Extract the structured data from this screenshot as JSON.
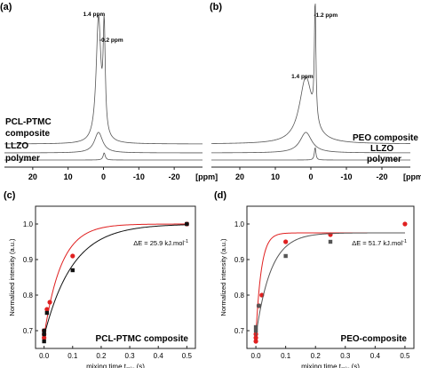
{
  "chart_data": [
    {
      "panel": "(a)",
      "type": "line",
      "xlabel": "[ppm]",
      "x_ticks": [
        20,
        10,
        0,
        -10,
        -20
      ],
      "xlim": [
        28,
        -28
      ],
      "x_reversed": true,
      "peak_labels": [
        {
          "text": "1.4 ppm",
          "ppm": 1.4
        },
        {
          "text": "-0.2 ppm",
          "ppm": -0.2
        }
      ],
      "series": [
        {
          "name": "PCL-PTMC composite",
          "peaks": [
            {
              "ppm": 1.4,
              "height": 1.0,
              "width": 0.8
            },
            {
              "ppm": -0.2,
              "height": 0.85,
              "width": 0.35
            }
          ]
        },
        {
          "name": "LLZO",
          "peaks": [
            {
              "ppm": 1.4,
              "height": 0.42,
              "width": 1.4
            }
          ]
        },
        {
          "name": "polymer",
          "peaks": [
            {
              "ppm": -0.2,
              "height": 0.18,
              "width": 0.35
            }
          ]
        }
      ],
      "trace_labels": [
        "PCL-PTMC",
        "composite",
        "LLZO",
        "polymer"
      ]
    },
    {
      "panel": "(b)",
      "type": "line",
      "xlabel": "[ppm]",
      "x_ticks": [
        20,
        10,
        0,
        -10,
        -20
      ],
      "xlim": [
        28,
        -28
      ],
      "x_reversed": true,
      "peak_labels": [
        {
          "text": "1.4 ppm",
          "ppm": 1.4
        },
        {
          "text": "-1.2 ppm",
          "ppm": -1.2
        }
      ],
      "series": [
        {
          "name": "PEO composite",
          "peaks": [
            {
              "ppm": 1.4,
              "height": 0.55,
              "width": 2.2
            },
            {
              "ppm": -1.2,
              "height": 1.0,
              "width": 0.25
            }
          ]
        },
        {
          "name": "LLZO",
          "peaks": [
            {
              "ppm": 1.4,
              "height": 0.42,
              "width": 2.0
            }
          ]
        },
        {
          "name": "polymer",
          "peaks": [
            {
              "ppm": -1.2,
              "height": 0.32,
              "width": 0.25
            }
          ]
        }
      ],
      "trace_labels": [
        "PEO composite",
        "LLZO",
        "polymer"
      ]
    },
    {
      "panel": "(c)",
      "type": "scatter",
      "title": "PCL-PTMC composite",
      "xlabel": "mixing time t",
      "xlabel_sub": "mix",
      "xlabel_unit": " (s)",
      "ylabel": "Normalized intensity (a.u.)",
      "xlim": [
        -0.03,
        0.53
      ],
      "ylim": [
        0.65,
        1.05
      ],
      "x_ticks": [
        0.0,
        0.1,
        0.2,
        0.3,
        0.4,
        0.5
      ],
      "y_ticks": [
        0.7,
        0.8,
        0.9,
        1.0
      ],
      "annotation": "ΔE = 25.9 kJ.mol",
      "annotation_sup": "-1",
      "series": [
        {
          "color": "#e02020",
          "marker": "circle",
          "x": [
            0.0,
            0.0,
            0.0,
            0.01,
            0.02,
            0.1,
            0.5
          ],
          "y": [
            0.7,
            0.69,
            0.68,
            0.76,
            0.78,
            0.91,
            1.0
          ],
          "fit_tau": 0.06
        },
        {
          "color": "#111111",
          "marker": "square",
          "x": [
            0.0,
            0.0,
            0.0,
            0.01,
            0.1,
            0.5
          ],
          "y": [
            0.67,
            0.7,
            0.69,
            0.75,
            0.87,
            1.0
          ],
          "fit_tau": 0.1
        }
      ]
    },
    {
      "panel": "(d)",
      "type": "scatter",
      "title": "PEO-composite",
      "xlabel": "mixing time t",
      "xlabel_sub": "mix",
      "xlabel_unit": " (s)",
      "ylabel": "Normalized intensity (a.u.)",
      "xlim": [
        -0.03,
        0.53
      ],
      "ylim": [
        0.65,
        1.05
      ],
      "x_ticks": [
        0.0,
        0.1,
        0.2,
        0.3,
        0.4,
        0.5
      ],
      "y_ticks": [
        0.7,
        0.8,
        0.9,
        1.0
      ],
      "annotation": "ΔE = 51.7 kJ.mol",
      "annotation_sup": "-1",
      "series": [
        {
          "color": "#e02020",
          "marker": "circle",
          "x": [
            0.0,
            0.0,
            0.0,
            0.01,
            0.02,
            0.1,
            0.25,
            0.5
          ],
          "y": [
            0.68,
            0.67,
            0.69,
            0.77,
            0.8,
            0.95,
            0.97,
            1.0
          ],
          "fit_tau": 0.018,
          "fit_plateau": 0.975
        },
        {
          "color": "#555555",
          "marker": "square",
          "x": [
            0.0,
            0.0,
            0.01,
            0.1,
            0.25
          ],
          "y": [
            0.71,
            0.7,
            0.77,
            0.91,
            0.95
          ],
          "fit_tau": 0.05,
          "fit_plateau": 0.975
        }
      ]
    }
  ]
}
